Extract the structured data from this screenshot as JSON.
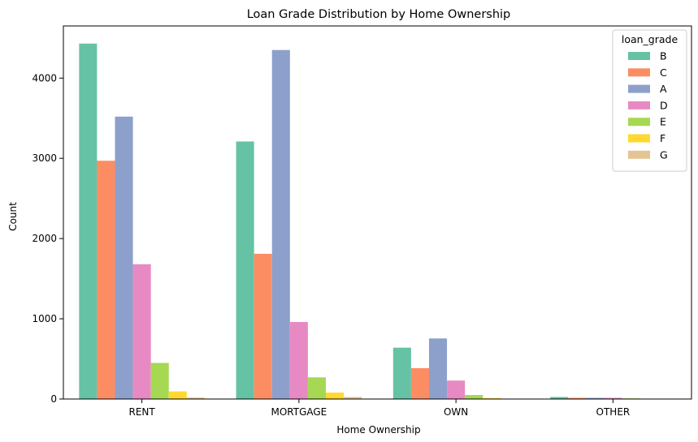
{
  "chart_data": {
    "type": "bar",
    "title": "Loan Grade Distribution by Home Ownership",
    "xlabel": "Home Ownership",
    "ylabel": "Count",
    "categories": [
      "RENT",
      "MORTGAGE",
      "OWN",
      "OTHER"
    ],
    "ylim": [
      0,
      4650
    ],
    "yticks": [
      0,
      1000,
      2000,
      3000,
      4000
    ],
    "grid": false,
    "legend": {
      "title": "loan_grade",
      "placement": "top-right"
    },
    "series": [
      {
        "name": "B",
        "color": "#66c2a5",
        "values": [
          4430,
          3210,
          640,
          25
        ]
      },
      {
        "name": "C",
        "color": "#fc8d62",
        "values": [
          2970,
          1810,
          385,
          15
        ]
      },
      {
        "name": "A",
        "color": "#8da0cb",
        "values": [
          3520,
          4350,
          755,
          15
        ]
      },
      {
        "name": "D",
        "color": "#e78ac3",
        "values": [
          1680,
          960,
          230,
          15
        ]
      },
      {
        "name": "E",
        "color": "#a6d854",
        "values": [
          450,
          270,
          50,
          8
        ]
      },
      {
        "name": "F",
        "color": "#ffd92f",
        "values": [
          95,
          80,
          10,
          2
        ]
      },
      {
        "name": "G",
        "color": "#e5c494",
        "values": [
          18,
          25,
          5,
          1
        ]
      }
    ]
  }
}
